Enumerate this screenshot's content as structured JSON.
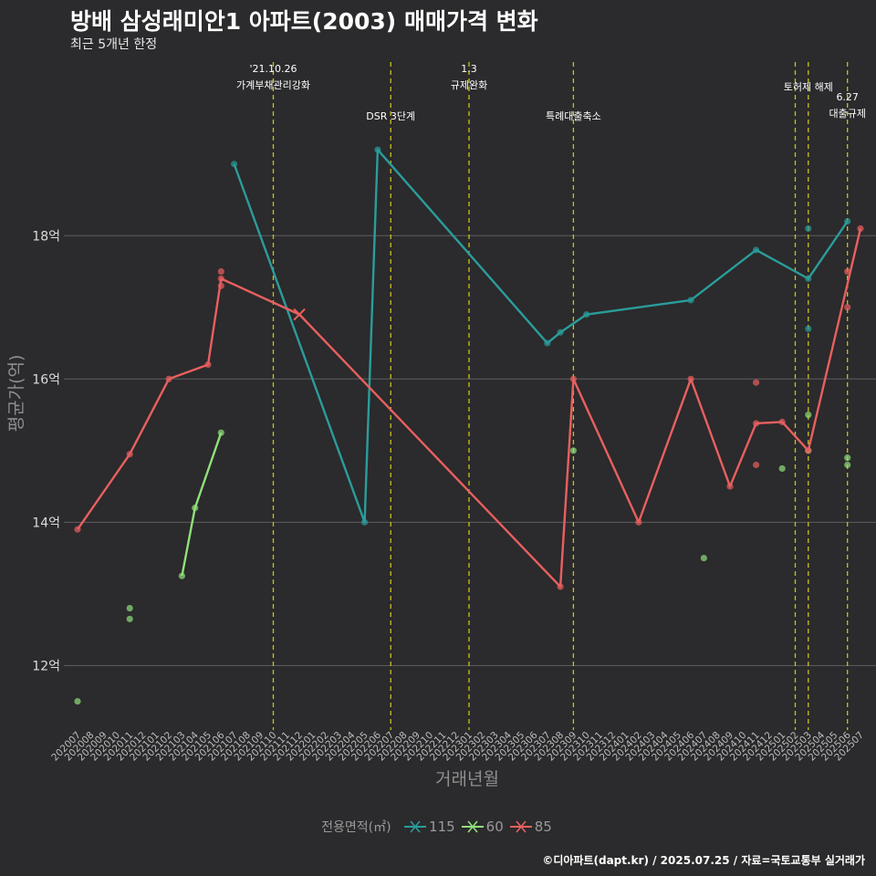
{
  "title": "방배 삼성래미안1 아파트(2003) 매매가격 변화",
  "subtitle": "최근 5개년 한정",
  "caption": "©디아파트(dapt.kr) / 2025.07.25 / 자료=국토교통부 실거래가",
  "chart_data": {
    "type": "line",
    "xlabel": "거래년월",
    "ylabel": "평균가(억)",
    "ylim": [
      11.1,
      20.5
    ],
    "yticks": [
      12,
      14,
      16,
      18
    ],
    "ytick_labels": [
      "12억",
      "14억",
      "16억",
      "18억"
    ],
    "grid": true,
    "x": [
      "202007",
      "202008",
      "202009",
      "202010",
      "202011",
      "202012",
      "202101",
      "202102",
      "202103",
      "202104",
      "202105",
      "202106",
      "202107",
      "202108",
      "202109",
      "202110",
      "202111",
      "202112",
      "202201",
      "202202",
      "202203",
      "202204",
      "202205",
      "202206",
      "202207",
      "202208",
      "202209",
      "202210",
      "202211",
      "202212",
      "202301",
      "202302",
      "202303",
      "202304",
      "202305",
      "202306",
      "202307",
      "202308",
      "202309",
      "202310",
      "202311",
      "202312",
      "202401",
      "202402",
      "202403",
      "202404",
      "202405",
      "202406",
      "202407",
      "202408",
      "202409",
      "202410",
      "202411",
      "202412",
      "202501",
      "202502",
      "202503",
      "202504",
      "202505",
      "202506",
      "202507"
    ],
    "legend_title": "전용면적(㎡)",
    "legend_position": "bottom",
    "series": [
      {
        "name": "115",
        "color": "#2a9d9b",
        "line": [
          [
            "202107",
            19.0
          ],
          [
            "202205",
            14.0
          ],
          [
            "202206",
            19.2
          ],
          [
            "202307",
            16.5
          ],
          [
            "202308",
            16.65
          ],
          [
            "202310",
            16.9
          ],
          [
            "202406",
            17.1
          ],
          [
            "202411",
            17.8
          ],
          [
            "202503",
            17.4
          ],
          [
            "202506",
            18.2
          ]
        ],
        "points": [
          [
            "202107",
            19.0
          ],
          [
            "202205",
            14.0
          ],
          [
            "202206",
            19.2
          ],
          [
            "202307",
            16.5
          ],
          [
            "202308",
            16.65
          ],
          [
            "202310",
            16.9
          ],
          [
            "202406",
            17.1
          ],
          [
            "202411",
            17.8
          ],
          [
            "202503",
            18.1
          ],
          [
            "202503",
            16.7
          ],
          [
            "202503",
            17.4
          ],
          [
            "202506",
            18.2
          ]
        ]
      },
      {
        "name": "60",
        "color": "#8fe07a",
        "line": [
          [
            "202103",
            13.25
          ],
          [
            "202104",
            14.2
          ],
          [
            "202106",
            15.25
          ]
        ],
        "points": [
          [
            "202007",
            11.5
          ],
          [
            "202011",
            12.8
          ],
          [
            "202011",
            12.65
          ],
          [
            "202103",
            13.25
          ],
          [
            "202104",
            14.2
          ],
          [
            "202106",
            15.25
          ],
          [
            "202309",
            15.0
          ],
          [
            "202407",
            13.5
          ],
          [
            "202501",
            14.75
          ],
          [
            "202503",
            15.5
          ],
          [
            "202503",
            15.0
          ],
          [
            "202506",
            14.9
          ],
          [
            "202506",
            14.8
          ]
        ]
      },
      {
        "name": "85",
        "color": "#e8605f",
        "line": [
          [
            "202007",
            13.9
          ],
          [
            "202011",
            14.95
          ],
          [
            "202102",
            16.0
          ],
          [
            "202105",
            16.2
          ],
          [
            "202106",
            17.4
          ],
          [
            "202112",
            16.9
          ],
          [
            "202308",
            13.1
          ],
          [
            "202309",
            16.0
          ],
          [
            "202402",
            14.0
          ],
          [
            "202406",
            16.0
          ],
          [
            "202409",
            14.5
          ],
          [
            "202411",
            15.38
          ],
          [
            "202501",
            15.4
          ],
          [
            "202503",
            15.0
          ],
          [
            "202507",
            18.1
          ]
        ],
        "points": [
          [
            "202007",
            13.9
          ],
          [
            "202011",
            14.95
          ],
          [
            "202102",
            16.0
          ],
          [
            "202105",
            16.2
          ],
          [
            "202106",
            17.5
          ],
          [
            "202106",
            17.3
          ],
          [
            "202106",
            17.4
          ],
          [
            "202308",
            13.1
          ],
          [
            "202309",
            16.0
          ],
          [
            "202402",
            14.0
          ],
          [
            "202406",
            16.0
          ],
          [
            "202409",
            14.5
          ],
          [
            "202411",
            15.95
          ],
          [
            "202411",
            14.8
          ],
          [
            "202411",
            15.38
          ],
          [
            "202501",
            15.4
          ],
          [
            "202503",
            15.0
          ],
          [
            "202506",
            17.5
          ],
          [
            "202506",
            17.0
          ],
          [
            "202507",
            18.1
          ]
        ],
        "cross_markers": [
          [
            "202112",
            16.9
          ]
        ]
      }
    ],
    "events": [
      {
        "x": "202110",
        "lines": [
          "'21.10.26",
          "가계부채관리강화"
        ],
        "label_row": 0
      },
      {
        "x": "202207",
        "lines": [
          "DSR 3단계"
        ],
        "label_row": 2
      },
      {
        "x": "202301",
        "lines": [
          "1.3",
          "규제완화"
        ],
        "label_row": 0
      },
      {
        "x": "202309",
        "lines": [
          "특례대출축소"
        ],
        "label_row": 2
      },
      {
        "x": "202502",
        "lines": [],
        "label_row": 0
      },
      {
        "x": "202503",
        "lines": [
          "토허제 해제"
        ],
        "label_row": 1
      },
      {
        "x": "202506",
        "lines": [
          "6.27",
          "대출규제"
        ],
        "label_row": 3
      }
    ]
  }
}
